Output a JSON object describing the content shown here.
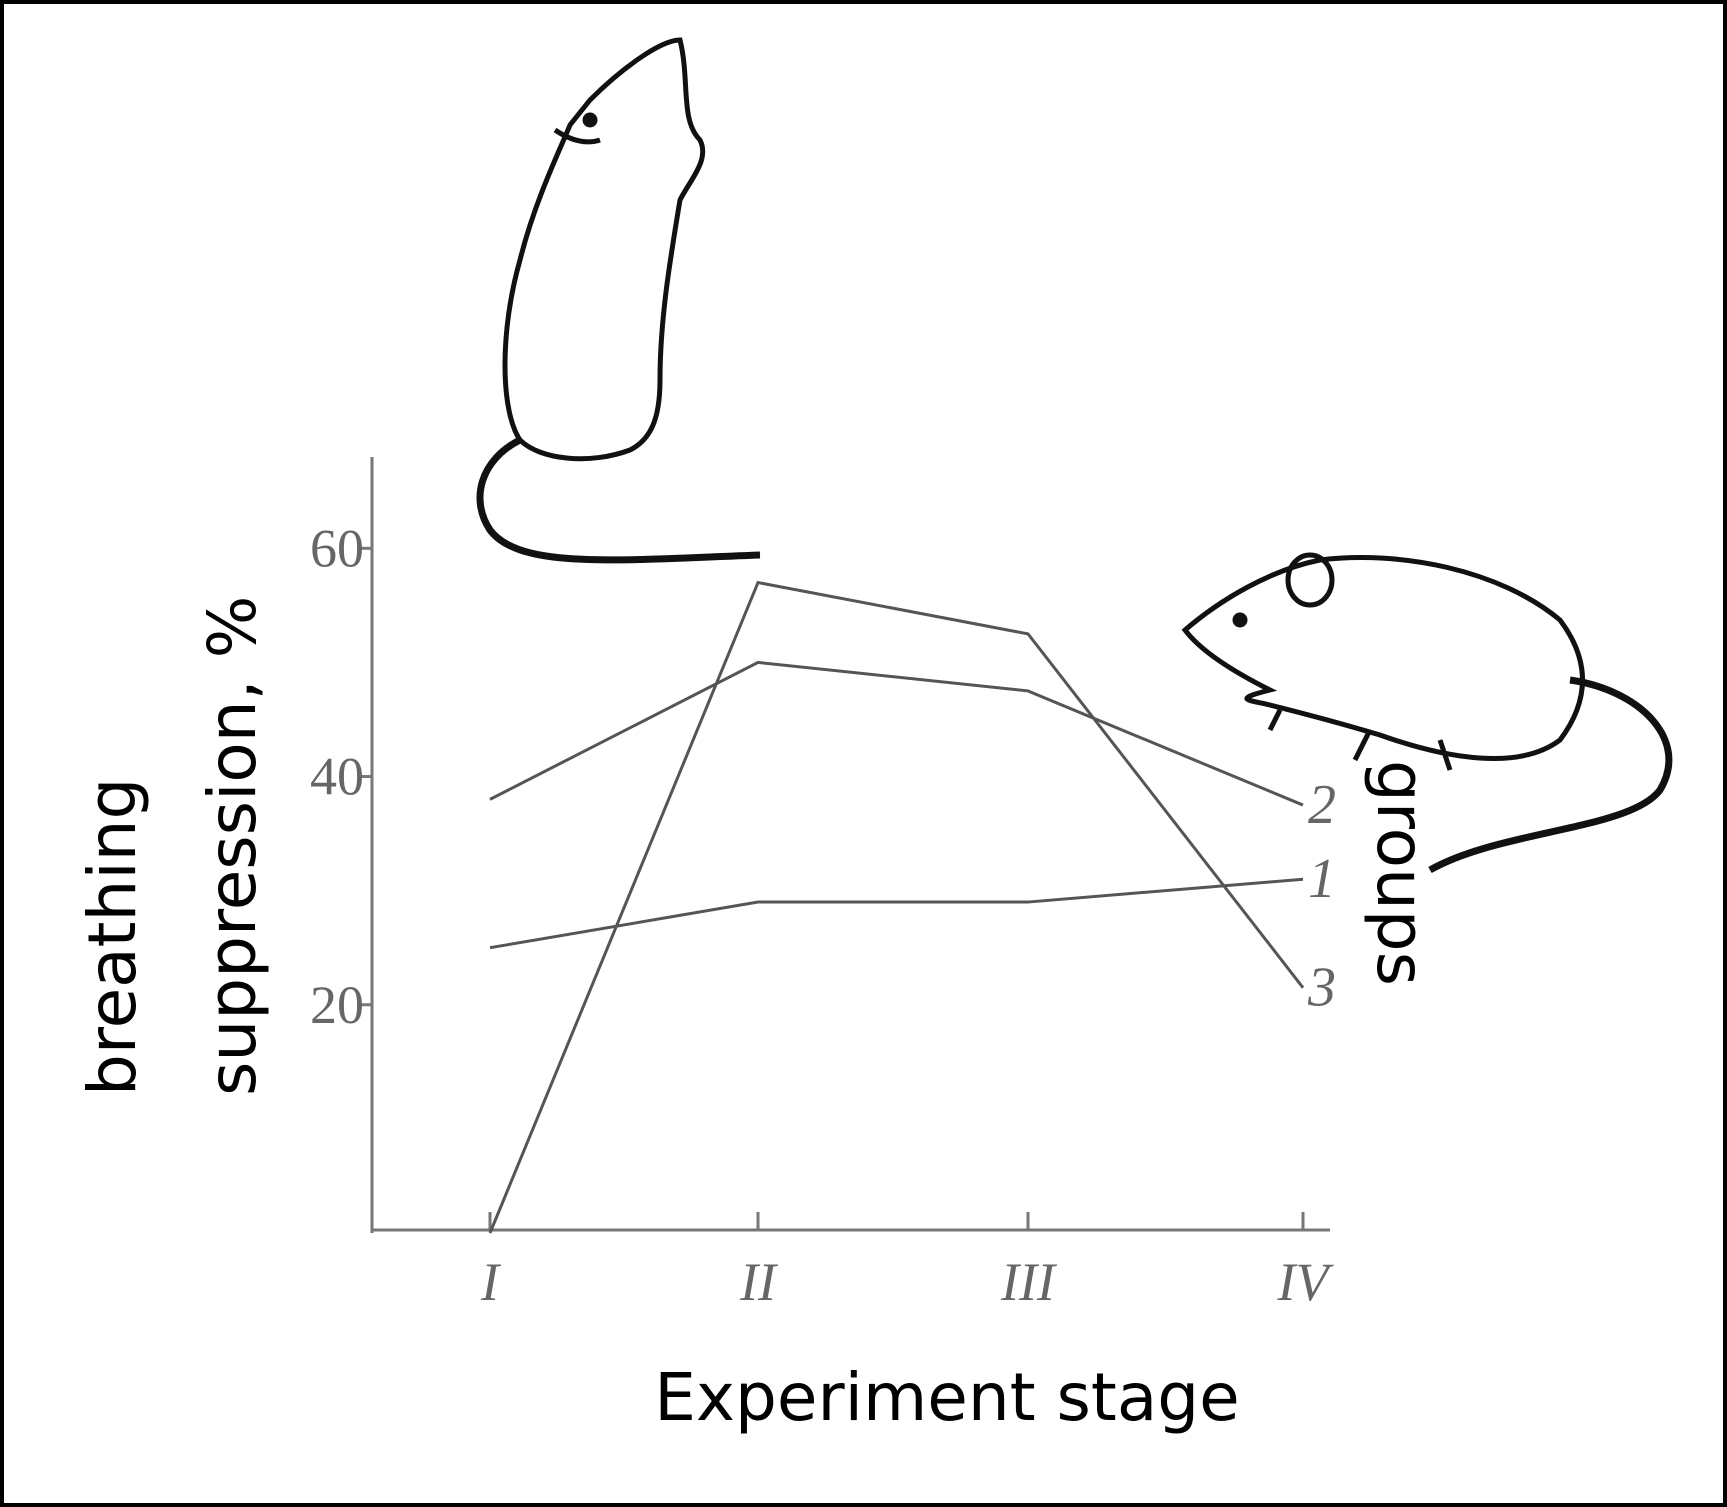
{
  "chart_data": {
    "type": "line",
    "y_label": [
      "breathing",
      "suppression, %"
    ],
    "x_label": "Experiment stage",
    "legend_title": "groups",
    "categories": [
      "I",
      "II",
      "III",
      "IV"
    ],
    "series": [
      {
        "name": "1",
        "color": "#555555",
        "values": [
          25,
          29,
          29,
          31
        ]
      },
      {
        "name": "2",
        "color": "#555555",
        "values": [
          38,
          50,
          47.5,
          37.5
        ]
      },
      {
        "name": "3",
        "color": "#555555",
        "values": [
          0,
          57,
          52.5,
          21.5
        ]
      }
    ],
    "ylim": [
      0,
      68
    ],
    "yticks": [
      20,
      40,
      60
    ],
    "grid": false
  }
}
